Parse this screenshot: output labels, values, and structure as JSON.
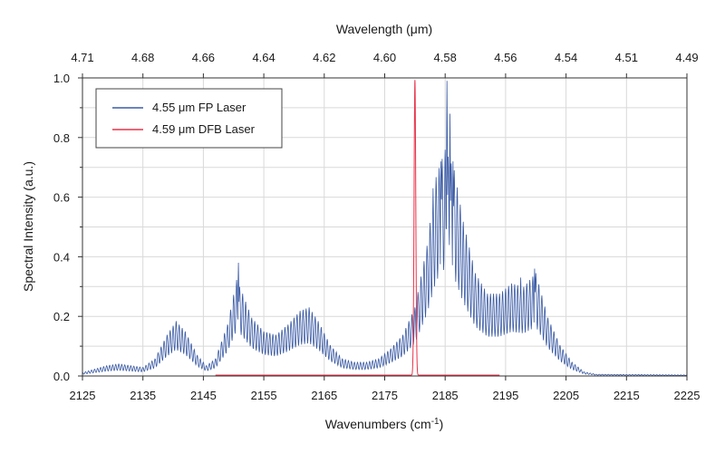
{
  "chart_data": {
    "type": "line",
    "title": "",
    "xlabel": "Wavenumbers (cm",
    "xlabel_sup": "-1",
    "xlabel_end": ")",
    "ylabel": "Spectral Intensity (a.u.)",
    "top_xlabel": "Wavelength (μm)",
    "xlim": [
      2125,
      2225
    ],
    "ylim": [
      0,
      1.0
    ],
    "xticks": [
      2125,
      2135,
      2145,
      2155,
      2165,
      2175,
      2185,
      2195,
      2205,
      2215,
      2225
    ],
    "xtick_labels": [
      "2125",
      "2135",
      "2145",
      "2155",
      "2165",
      "2175",
      "2185",
      "2195",
      "2205",
      "2215",
      "2225"
    ],
    "yticks": [
      0.0,
      0.2,
      0.4,
      0.6,
      0.8,
      1.0
    ],
    "ytick_labels": [
      "0.0",
      "0.2",
      "0.4",
      "0.6",
      "0.8",
      "1.0"
    ],
    "top_ticks": [
      4.71,
      4.68,
      4.66,
      4.64,
      4.62,
      4.6,
      4.58,
      4.56,
      4.54,
      4.51,
      4.49
    ],
    "top_tick_labels": [
      "4.71",
      "4.68",
      "4.66",
      "4.64",
      "4.62",
      "4.60",
      "4.58",
      "4.56",
      "4.54",
      "4.51",
      "4.49"
    ],
    "grid": true,
    "legend_position": "top-left",
    "series": [
      {
        "name": "4.55 μm FP Laser",
        "color": "#3b5ba5",
        "mode_spacing": 0.5,
        "envelope": [
          [
            2125,
            0.01
          ],
          [
            2127,
            0.02
          ],
          [
            2129,
            0.03
          ],
          [
            2131,
            0.035
          ],
          [
            2133,
            0.03
          ],
          [
            2135,
            0.025
          ],
          [
            2137,
            0.05
          ],
          [
            2139,
            0.12
          ],
          [
            2140.5,
            0.16
          ],
          [
            2142,
            0.13
          ],
          [
            2144,
            0.06
          ],
          [
            2145.5,
            0.03
          ],
          [
            2147,
            0.05
          ],
          [
            2149,
            0.15
          ],
          [
            2150.5,
            0.28
          ],
          [
            2151.5,
            0.24
          ],
          [
            2153,
            0.17
          ],
          [
            2155,
            0.13
          ],
          [
            2157,
            0.12
          ],
          [
            2159,
            0.15
          ],
          [
            2161,
            0.19
          ],
          [
            2162.5,
            0.2
          ],
          [
            2164,
            0.16
          ],
          [
            2166,
            0.09
          ],
          [
            2168,
            0.05
          ],
          [
            2170,
            0.04
          ],
          [
            2172,
            0.04
          ],
          [
            2174,
            0.05
          ],
          [
            2176,
            0.08
          ],
          [
            2178,
            0.12
          ],
          [
            2180,
            0.2
          ],
          [
            2182,
            0.38
          ],
          [
            2183.5,
            0.58
          ],
          [
            2185,
            0.66
          ],
          [
            2186.5,
            0.6
          ],
          [
            2188,
            0.45
          ],
          [
            2190,
            0.3
          ],
          [
            2192,
            0.24
          ],
          [
            2194,
            0.24
          ],
          [
            2196,
            0.27
          ],
          [
            2198,
            0.26
          ],
          [
            2200,
            0.3
          ],
          [
            2202,
            0.17
          ],
          [
            2204,
            0.09
          ],
          [
            2206,
            0.04
          ],
          [
            2208,
            0.012
          ],
          [
            2210,
            0.005
          ],
          [
            2225,
            0.003
          ]
        ],
        "peaks": [
          [
            2150.8,
            0.38
          ],
          [
            2185.3,
            0.99
          ],
          [
            2185.8,
            0.88
          ],
          [
            2186.3,
            0.72
          ],
          [
            2184.3,
            0.72
          ],
          [
            2183.0,
            0.63
          ],
          [
            2199.8,
            0.36
          ],
          [
            2197.5,
            0.33
          ],
          [
            2196.5,
            0.3
          ],
          [
            2162.5,
            0.23
          ]
        ]
      },
      {
        "name": "4.59 μm DFB Laser",
        "color": "#e8334a",
        "peak_center": 2180.0,
        "peak_height": 0.99,
        "peak_width": 0.2,
        "x_range": [
          2147,
          2194
        ],
        "baseline": 0.003
      }
    ]
  }
}
